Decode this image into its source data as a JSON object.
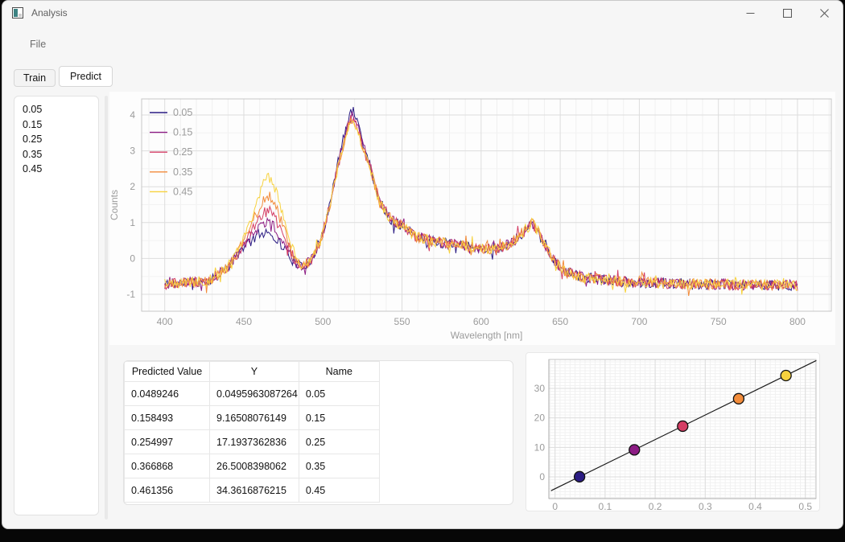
{
  "window": {
    "title": "Analysis",
    "controls": {
      "minimize": "minimize",
      "maximize": "maximize",
      "close": "close"
    }
  },
  "menu": {
    "items": [
      {
        "label": "File"
      }
    ]
  },
  "tabs": [
    {
      "label": "Train",
      "active": false
    },
    {
      "label": "Predict",
      "active": true
    }
  ],
  "sample_list": {
    "items": [
      "0.05",
      "0.15",
      "0.25",
      "0.35",
      "0.45"
    ]
  },
  "spectrum_chart": {
    "type": "line",
    "xlabel": "Wavelength [nm]",
    "ylabel": "Counts",
    "x_ticks": [
      400,
      450,
      500,
      550,
      600,
      650,
      700,
      750,
      800
    ],
    "y_ticks": [
      -1,
      0,
      1,
      2,
      3,
      4
    ],
    "x_minor_step": 10,
    "grid": true,
    "legend_position": "top-left",
    "series": [
      {
        "name": "0.05",
        "color": "#2b1c83",
        "bump_extra": 0.0,
        "peak_adj": 0.2,
        "seed": 11
      },
      {
        "name": "0.15",
        "color": "#8c1c84",
        "bump_extra": 0.27,
        "peak_adj": 0.12,
        "seed": 23
      },
      {
        "name": "0.25",
        "color": "#d43d64",
        "bump_extra": 0.57,
        "peak_adj": 0.0,
        "seed": 37
      },
      {
        "name": "0.35",
        "color": "#f28c3b",
        "bump_extra": 0.97,
        "peak_adj": -0.06,
        "seed": 51
      },
      {
        "name": "0.45",
        "color": "#f7d23e",
        "bump_extra": 1.47,
        "peak_adj": -0.15,
        "seed": 67
      }
    ],
    "base_shape_anchors": [
      [
        400,
        -0.72
      ],
      [
        428,
        -0.62
      ],
      [
        440,
        -0.25
      ],
      [
        450,
        0.35
      ],
      [
        460,
        0.68
      ],
      [
        466,
        0.78
      ],
      [
        473,
        0.42
      ],
      [
        481,
        -0.05
      ],
      [
        487,
        -0.27
      ],
      [
        493,
        0.0
      ],
      [
        499,
        0.55
      ],
      [
        505,
        1.6
      ],
      [
        509,
        2.5
      ],
      [
        513,
        3.2
      ],
      [
        516,
        3.7
      ],
      [
        519,
        3.95
      ],
      [
        523,
        3.5
      ],
      [
        526,
        3.0
      ],
      [
        530,
        2.5
      ],
      [
        536,
        1.55
      ],
      [
        543,
        1.1
      ],
      [
        550,
        0.91
      ],
      [
        558,
        0.62
      ],
      [
        568,
        0.5
      ],
      [
        580,
        0.4
      ],
      [
        592,
        0.33
      ],
      [
        604,
        0.27
      ],
      [
        612,
        0.3
      ],
      [
        620,
        0.45
      ],
      [
        627,
        0.75
      ],
      [
        632,
        1.0
      ],
      [
        636,
        0.75
      ],
      [
        641,
        0.3
      ],
      [
        647,
        -0.1
      ],
      [
        654,
        -0.38
      ],
      [
        662,
        -0.5
      ],
      [
        672,
        -0.58
      ],
      [
        690,
        -0.65
      ],
      [
        720,
        -0.7
      ],
      [
        760,
        -0.73
      ],
      [
        800,
        -0.75
      ]
    ],
    "bump_center": 466,
    "bump_sigma": 8.5,
    "peak_center": 519,
    "peak_sigma": 7,
    "noise": 0.15,
    "x_data_range": [
      400,
      800
    ]
  },
  "results_table": {
    "headers": [
      "Predicted Value",
      "Y",
      "Name"
    ],
    "rows": [
      {
        "predicted": "0.0489246",
        "y": "0.0495963087264",
        "name": "0.05"
      },
      {
        "predicted": "0.158493",
        "y": "9.16508076149",
        "name": "0.15"
      },
      {
        "predicted": "0.254997",
        "y": "17.1937362836",
        "name": "0.25"
      },
      {
        "predicted": "0.366868",
        "y": "26.5008398062",
        "name": "0.35"
      },
      {
        "predicted": "0.461356",
        "y": "34.3616876215",
        "name": "0.45"
      }
    ]
  },
  "calibration_chart": {
    "type": "scatter",
    "x_ticks": [
      0,
      0.1,
      0.2,
      0.3,
      0.4,
      0.5
    ],
    "y_ticks": [
      0,
      10,
      20,
      30
    ],
    "grid": true,
    "points": [
      {
        "x": 0.0489246,
        "y": 0.0495963087264,
        "color": "#2b1c83"
      },
      {
        "x": 0.158493,
        "y": 9.16508076149,
        "color": "#8c1c84"
      },
      {
        "x": 0.254997,
        "y": 17.1937362836,
        "color": "#d43d64"
      },
      {
        "x": 0.366868,
        "y": 26.5008398062,
        "color": "#f28c3b"
      },
      {
        "x": 0.461356,
        "y": 34.3616876215,
        "color": "#f7d23e"
      }
    ],
    "fit_line": {
      "slope": 83.3,
      "intercept": -4.02,
      "x_start": -0.008,
      "x_end": 0.522,
      "color": "#1a1a1a"
    }
  },
  "colors": {
    "window_bg": "#f6f6f6",
    "panel_bg": "#ffffff",
    "grid_major": "#dddddd",
    "grid_minor": "#f0f0f0",
    "axis_frame": "#c6c6c6",
    "tick_text": "#9b9b9b",
    "icon_teal": "#3d8383"
  }
}
